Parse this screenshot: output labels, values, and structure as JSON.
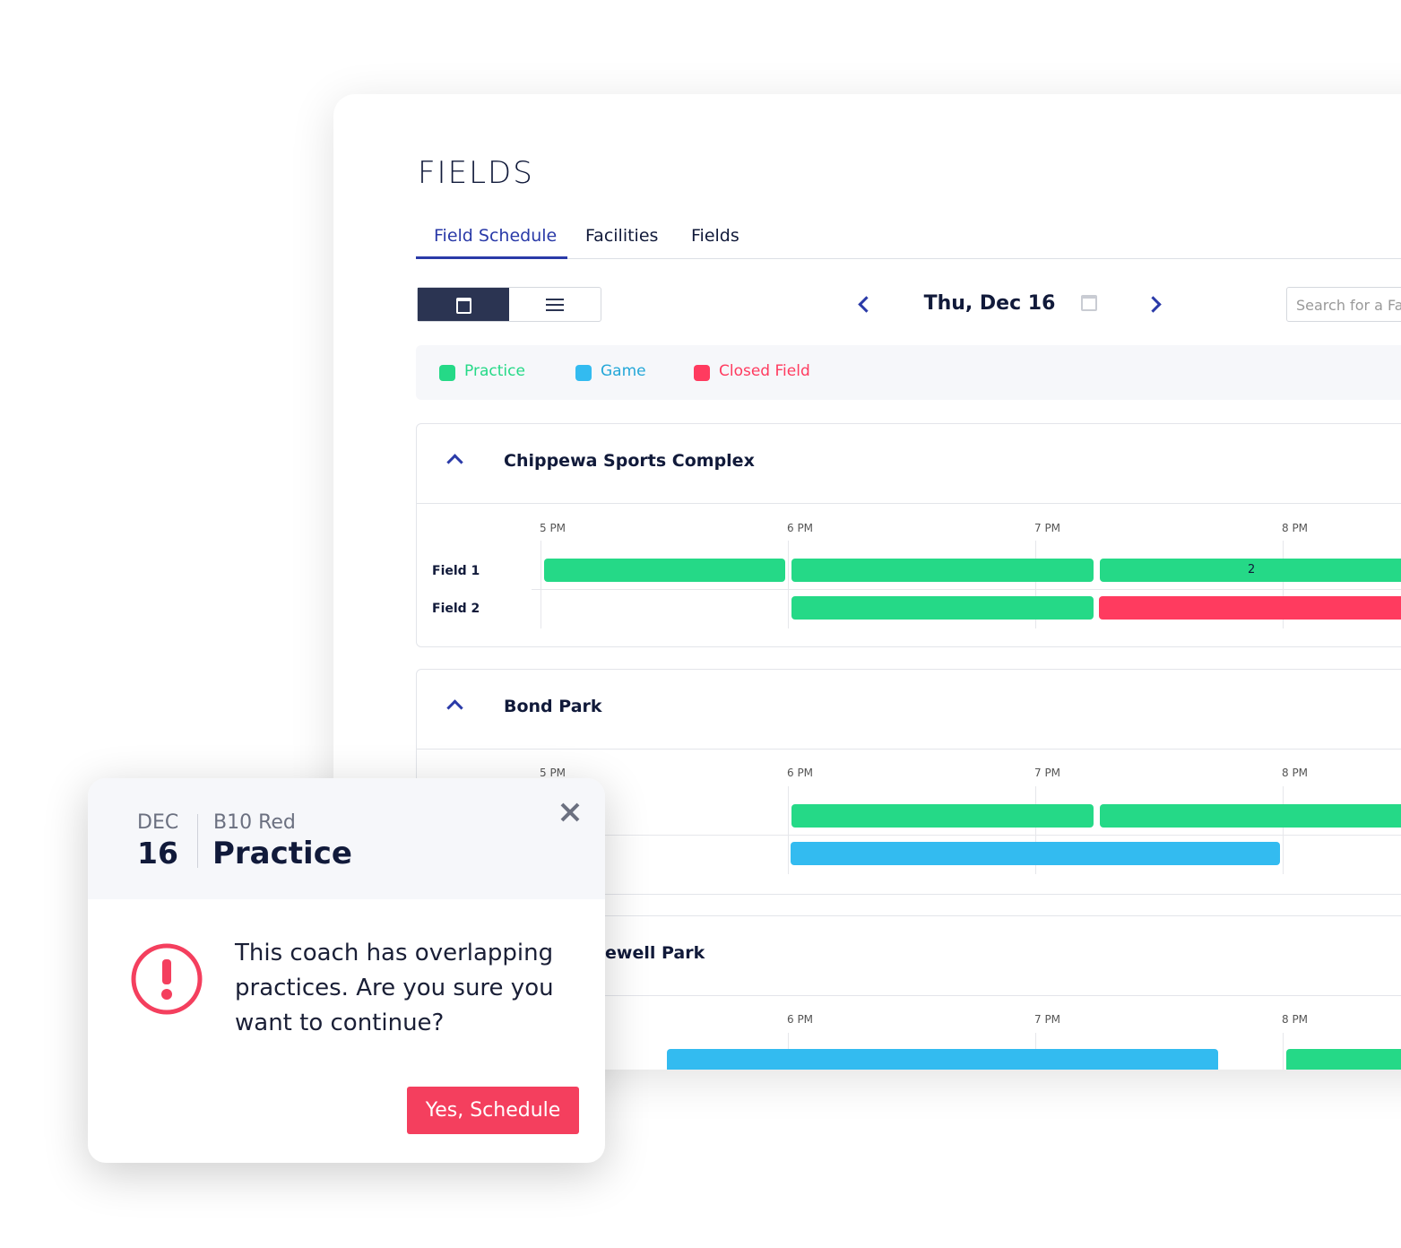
{
  "header": {
    "title": "FIELDS",
    "tabs": [
      "Field Schedule",
      "Facilities",
      "Fields"
    ]
  },
  "toolbar": {
    "date": "Thu, Dec 16",
    "search_placeholder": "Search for a Fa"
  },
  "legend": [
    "Practice",
    "Game",
    "Closed Field"
  ],
  "sections": [
    {
      "name": "Chippewa Sports Complex",
      "times": [
        "5 PM",
        "6 PM",
        "7 PM",
        "8 PM"
      ],
      "fields": [
        "Field 1",
        "Field 2"
      ],
      "bar_label": "2"
    },
    {
      "name": "Bond Park",
      "times": [
        "5 PM",
        "6 PM",
        "7 PM",
        "8 PM"
      ]
    },
    {
      "name": "ewell Park",
      "times": [
        "6 PM",
        "7 PM",
        "8 PM"
      ]
    }
  ],
  "dialog": {
    "month": "DEC",
    "day": "16",
    "team": "B10 Red",
    "event": "Practice",
    "message": "This coach has overlapping practices. Are you sure you want to continue?",
    "button": "Yes, Schedule"
  }
}
